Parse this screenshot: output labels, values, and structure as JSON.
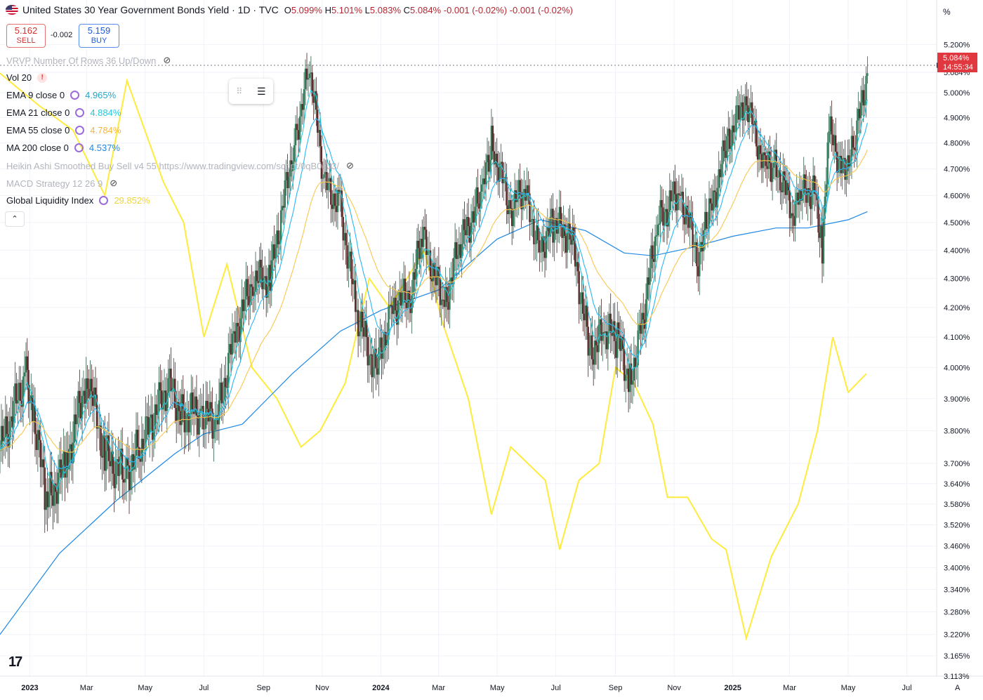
{
  "header": {
    "title": "United States 30 Year Government Bonds Yield · 1D · TVC",
    "ohlc": [
      {
        "k": "O",
        "v": "5.099%"
      },
      {
        "k": "H",
        "v": "5.101%"
      },
      {
        "k": "L",
        "v": "5.083%"
      },
      {
        "k": "C",
        "v": "5.084%"
      }
    ],
    "change": "-0.001 (-0.02%)",
    "change2": "-0.001 (-0.02%)"
  },
  "trade": {
    "sell_price": "5.162",
    "sell_label": "SELL",
    "spread": "-0.002",
    "buy_price": "5.159",
    "buy_label": "BUY"
  },
  "legend": {
    "vrvp": "VRVP Number Of Rows 36 Up/Down",
    "vol": "Vol 20",
    "ema9_name": "EMA 9 close 0",
    "ema9_value": "4.965%",
    "ema21_name": "EMA 21 close 0",
    "ema21_value": "4.884%",
    "ema55_name": "EMA 55 close 0",
    "ema55_value": "4.784%",
    "ma200_name": "MA 200 close 0",
    "ma200_value": "4.537%",
    "heikin": "Heikin Ashi Smoothed Buy Sell v4 55 https://www.tradingview.com/script/0qB0qJ3/",
    "macd": "MACD Strategy 12 26 9",
    "gli_name": "Global Liquidity Index",
    "gli_value": "29.852%"
  },
  "price_axis": {
    "unit": "%",
    "last_price": "5.084%",
    "countdown": "14:55:34",
    "footer_label": "A"
  },
  "colors": {
    "up": "#26a69a",
    "down": "#5d2a2a",
    "candle_body_up": "#2e7d5b",
    "ema9": "#26c6da",
    "ema21": "#29b6f6",
    "ema55": "#f9c74f",
    "ma200": "#1e88e5",
    "gli": "#ffeb3b",
    "price_tag": "#e0383e"
  },
  "chart_data": {
    "type": "line",
    "title": "United States 30 Year Government Bonds Yield · 1D · TVC",
    "scale": "log",
    "ylim": [
      3.113,
      5.3
    ],
    "y_ticks": [
      "5.200%",
      "5.084%",
      "5.000%",
      "4.900%",
      "4.800%",
      "4.700%",
      "4.600%",
      "4.500%",
      "4.400%",
      "4.300%",
      "4.200%",
      "4.100%",
      "4.000%",
      "3.900%",
      "3.800%",
      "3.700%",
      "3.640%",
      "3.580%",
      "3.520%",
      "3.460%",
      "3.400%",
      "3.340%",
      "3.280%",
      "3.220%",
      "3.165%",
      "3.113%"
    ],
    "x_ticks": [
      "2023",
      "Mar",
      "May",
      "Jul",
      "Sep",
      "Nov",
      "2024",
      "Mar",
      "May",
      "Jul",
      "Sep",
      "Nov",
      "2025",
      "Mar",
      "May",
      "Jul"
    ],
    "x_tick_values": [
      "2023-01-01",
      "2023-03-01",
      "2023-05-01",
      "2023-07-01",
      "2023-09-01",
      "2023-11-01",
      "2024-01-01",
      "2024-03-01",
      "2024-05-01",
      "2024-07-01",
      "2024-09-01",
      "2024-11-01",
      "2025-01-01",
      "2025-03-01",
      "2025-05-01",
      "2025-07-01"
    ],
    "series": [
      {
        "name": "30Y Yield",
        "x": [
          "2022-12-01",
          "2022-12-28",
          "2023-01-05",
          "2023-01-18",
          "2023-02-08",
          "2023-03-02",
          "2023-03-20",
          "2023-04-10",
          "2023-04-26",
          "2023-05-25",
          "2023-06-08",
          "2023-06-29",
          "2023-07-14",
          "2023-08-01",
          "2023-08-21",
          "2023-09-08",
          "2023-10-03",
          "2023-10-19",
          "2023-11-03",
          "2023-11-20",
          "2023-12-07",
          "2023-12-27",
          "2024-01-12",
          "2024-02-01",
          "2024-02-13",
          "2024-03-07",
          "2024-03-21",
          "2024-04-15",
          "2024-04-25",
          "2024-05-15",
          "2024-05-29",
          "2024-06-14",
          "2024-06-28",
          "2024-07-17",
          "2024-08-05",
          "2024-08-20",
          "2024-09-03",
          "2024-09-16",
          "2024-09-30",
          "2024-10-15",
          "2024-11-06",
          "2024-11-26",
          "2024-12-06",
          "2024-12-26",
          "2025-01-14",
          "2025-02-03",
          "2025-02-14",
          "2025-03-04",
          "2025-03-13",
          "2025-03-27",
          "2025-04-04",
          "2025-04-11",
          "2025-04-25",
          "2025-05-06",
          "2025-05-21"
        ],
        "y": [
          3.74,
          3.98,
          3.86,
          3.58,
          3.7,
          3.98,
          3.72,
          3.67,
          3.75,
          3.95,
          3.85,
          3.86,
          3.82,
          4.1,
          4.3,
          4.3,
          4.8,
          5.11,
          4.65,
          4.55,
          4.18,
          3.98,
          4.2,
          4.25,
          4.45,
          4.2,
          4.4,
          4.6,
          4.8,
          4.55,
          4.62,
          4.4,
          4.5,
          4.45,
          4.05,
          4.12,
          4.1,
          3.95,
          4.17,
          4.5,
          4.62,
          4.38,
          4.5,
          4.8,
          4.98,
          4.7,
          4.72,
          4.55,
          4.6,
          4.63,
          4.42,
          4.85,
          4.7,
          4.77,
          5.08
        ]
      },
      {
        "name": "Global Liquidity Index",
        "x": [
          "2022-12-01",
          "2023-01-10",
          "2023-02-15",
          "2023-03-20",
          "2023-04-12",
          "2023-05-20",
          "2023-06-10",
          "2023-07-01",
          "2023-07-25",
          "2023-08-20",
          "2023-09-15",
          "2023-10-10",
          "2023-10-30",
          "2023-11-25",
          "2023-12-20",
          "2024-01-10",
          "2024-02-15",
          "2024-03-05",
          "2024-04-01",
          "2024-04-25",
          "2024-05-15",
          "2024-06-20",
          "2024-07-05",
          "2024-07-25",
          "2024-08-15",
          "2024-09-01",
          "2024-09-20",
          "2024-10-10",
          "2024-10-25",
          "2024-11-15",
          "2024-12-10",
          "2024-12-25",
          "2025-01-15",
          "2025-02-10",
          "2025-03-10",
          "2025-03-30",
          "2025-04-15",
          "2025-05-01",
          "2025-05-20"
        ],
        "y": [
          5.08,
          4.95,
          4.85,
          4.6,
          5.05,
          4.65,
          4.5,
          4.1,
          4.35,
          4.0,
          3.9,
          3.75,
          3.8,
          3.95,
          4.3,
          4.2,
          4.4,
          4.15,
          3.9,
          3.55,
          3.75,
          3.65,
          3.45,
          3.65,
          3.7,
          4.0,
          3.95,
          3.82,
          3.6,
          3.6,
          3.48,
          3.45,
          3.21,
          3.43,
          3.58,
          3.8,
          4.1,
          3.92,
          3.98
        ]
      },
      {
        "name": "EMA 9 close 0",
        "last": 4.965
      },
      {
        "name": "EMA 21 close 0",
        "last": 4.884
      },
      {
        "name": "EMA 55 close 0",
        "last": 4.784
      },
      {
        "name": "MA 200 close 0",
        "last": 4.537,
        "x": [
          "2022-12-01",
          "2023-02-01",
          "2023-04-01",
          "2023-06-01",
          "2023-07-01",
          "2023-08-10",
          "2023-10-01",
          "2023-11-20",
          "2024-01-01",
          "2024-03-01",
          "2024-05-01",
          "2024-06-15",
          "2024-08-01",
          "2024-09-10",
          "2024-10-10",
          "2024-11-20",
          "2025-01-01",
          "2025-02-15",
          "2025-03-20",
          "2025-05-01",
          "2025-05-21"
        ],
        "y": [
          3.22,
          3.44,
          3.59,
          3.73,
          3.79,
          3.82,
          3.98,
          4.12,
          4.19,
          4.26,
          4.44,
          4.51,
          4.47,
          4.39,
          4.38,
          4.41,
          4.45,
          4.48,
          4.48,
          4.51,
          4.54
        ]
      }
    ],
    "grid": true,
    "legend": "top-left"
  }
}
